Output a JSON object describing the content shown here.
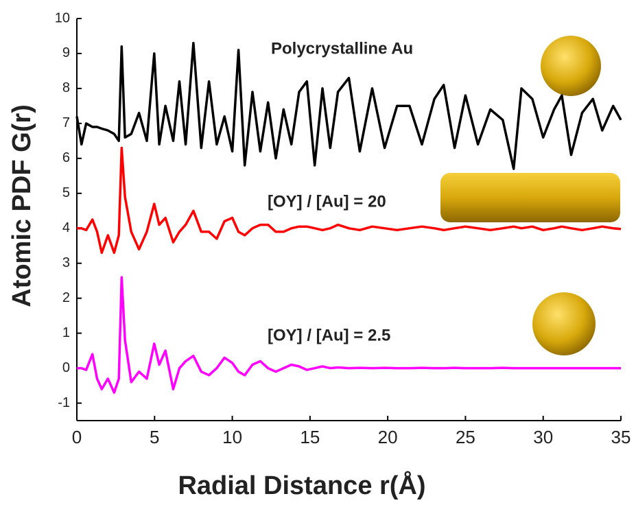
{
  "chart_data": {
    "type": "line",
    "xlabel": "Radial Distance r(Å)",
    "ylabel": "Atomic PDF G(r)",
    "annotations": [
      "Polycrystalline Au",
      "[OY] / [Au] = 20",
      "[OY] / [Au] = 2.5"
    ],
    "x": [
      0,
      0.3,
      0.6,
      1.0,
      1.3,
      1.6,
      2.0,
      2.4,
      2.7,
      2.88,
      3.1,
      3.5,
      4.0,
      4.5,
      4.98,
      5.3,
      5.7,
      6.2,
      6.6,
      7.0,
      7.5,
      8.0,
      8.5,
      9.0,
      9.5,
      10.0,
      10.4,
      10.8,
      11.3,
      11.8,
      12.3,
      12.8,
      13.3,
      13.8,
      14.3,
      14.8,
      15.3,
      15.8,
      16.3,
      16.8,
      17.5,
      18.2,
      19.0,
      19.8,
      20.6,
      21.4,
      22.2,
      23.0,
      23.6,
      24.3,
      25.0,
      25.8,
      26.6,
      27.4,
      28.1,
      28.6,
      29.3,
      30.0,
      30.7,
      31.2,
      31.8,
      32.5,
      33.2,
      33.8,
      34.5,
      35.0
    ],
    "series": [
      {
        "color": "#000000",
        "values": [
          7.2,
          6.4,
          7.0,
          6.9,
          6.9,
          6.85,
          6.8,
          6.7,
          6.5,
          9.2,
          6.6,
          6.7,
          7.3,
          6.5,
          9.0,
          6.4,
          7.5,
          6.5,
          8.2,
          6.4,
          9.3,
          6.3,
          8.2,
          6.4,
          7.2,
          6.2,
          9.1,
          5.8,
          7.9,
          6.2,
          7.6,
          6.0,
          7.4,
          6.4,
          7.9,
          8.2,
          5.8,
          8.0,
          6.3,
          7.9,
          8.3,
          6.2,
          8.0,
          6.3,
          7.5,
          7.5,
          6.4,
          7.7,
          8.1,
          6.3,
          7.8,
          6.4,
          7.4,
          7.1,
          5.7,
          8.0,
          7.7,
          6.6,
          7.4,
          7.8,
          6.1,
          7.3,
          7.7,
          6.8,
          7.5,
          7.1
        ]
      },
      {
        "color": "#ff0000",
        "values": [
          4.0,
          4.0,
          3.95,
          4.25,
          3.9,
          3.3,
          3.8,
          3.3,
          3.8,
          6.3,
          4.9,
          3.9,
          3.4,
          3.9,
          4.7,
          4.1,
          4.3,
          3.6,
          3.9,
          4.1,
          4.5,
          3.9,
          3.9,
          3.7,
          4.2,
          4.3,
          3.9,
          3.8,
          4.0,
          4.1,
          4.1,
          3.9,
          3.9,
          4.0,
          4.05,
          4.05,
          4.0,
          3.95,
          4.0,
          4.1,
          4.0,
          3.95,
          4.05,
          4.0,
          3.95,
          4.0,
          4.05,
          4.0,
          3.95,
          4.0,
          4.05,
          4.0,
          3.95,
          4.0,
          4.05,
          4.0,
          4.05,
          3.95,
          4.0,
          4.05,
          4.0,
          3.95,
          4.0,
          4.05,
          4.0,
          3.98
        ]
      },
      {
        "color": "#ff00ff",
        "values": [
          0,
          0,
          -0.05,
          0.4,
          -0.3,
          -0.6,
          -0.3,
          -0.7,
          -0.3,
          2.6,
          0.8,
          -0.4,
          -0.1,
          -0.3,
          0.7,
          0.1,
          0.5,
          -0.6,
          0,
          0.2,
          0.35,
          -0.1,
          -0.2,
          0,
          0.3,
          0.15,
          -0.1,
          -0.2,
          0.1,
          0.2,
          0,
          -0.1,
          0,
          0.1,
          0.05,
          -0.05,
          0,
          0.05,
          0,
          0.02,
          0,
          0.01,
          0,
          0.01,
          0,
          0,
          0.01,
          0,
          0,
          0.01,
          0,
          0,
          0,
          0.01,
          0,
          0,
          0,
          0,
          0,
          0,
          0,
          0,
          0,
          0,
          0,
          0
        ]
      }
    ],
    "xlim": [
      0,
      35
    ],
    "xticks": [
      0,
      5,
      10,
      15,
      20,
      25,
      30,
      35
    ],
    "ylim": [
      -1.5,
      10
    ],
    "yticks": [
      -1,
      0,
      1,
      2,
      3,
      4,
      5,
      6,
      7,
      8,
      9,
      10
    ]
  }
}
